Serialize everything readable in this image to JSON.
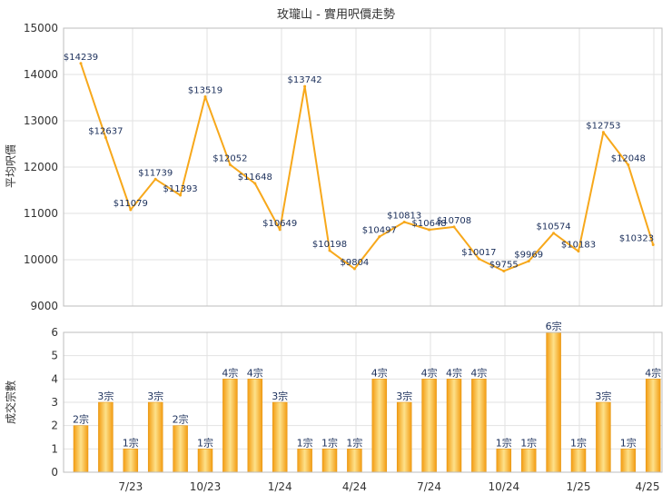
{
  "chart_data": [
    {
      "type": "line",
      "title": "玫瓏山 - 實用呎價走勢",
      "ylabel": "平均呎價",
      "ylim": [
        9000,
        15000
      ],
      "yticks": [
        9000,
        10000,
        11000,
        12000,
        13000,
        14000,
        15000
      ],
      "grid": true,
      "series": [
        {
          "color": "#f7a81b",
          "values": [
            14239,
            12637,
            11079,
            11739,
            11393,
            13519,
            12052,
            11648,
            10649,
            13742,
            10198,
            9804,
            10497,
            10813,
            10648,
            10708,
            10017,
            9755,
            9969,
            10574,
            10183,
            12753,
            12048,
            10323
          ],
          "labels": [
            "$14239",
            "$12637",
            "$11079",
            "$11739",
            "$11393",
            "$13519",
            "$12052",
            "$11648",
            "$10649",
            "$13742",
            "$10198",
            "$9804",
            "$10497",
            "$10813",
            "$10648",
            "$10708",
            "$10017",
            "$9755",
            "$9969",
            "$10574",
            "$10183",
            "$12753",
            "$12048",
            "$10323"
          ]
        }
      ]
    },
    {
      "type": "bar",
      "ylabel": "成交宗數",
      "ylim": [
        0,
        6
      ],
      "yticks": [
        0,
        1,
        2,
        3,
        4,
        5,
        6
      ],
      "grid": true,
      "x_tick_labels": [
        "7/23",
        "10/23",
        "1/24",
        "4/24",
        "7/24",
        "10/24",
        "1/25",
        "4/25"
      ],
      "series": [
        {
          "color": "#f7a81b",
          "values": [
            2,
            3,
            1,
            3,
            2,
            1,
            4,
            4,
            3,
            1,
            1,
            1,
            4,
            3,
            4,
            4,
            4,
            1,
            1,
            6,
            1,
            3,
            1,
            4
          ],
          "labels": [
            "2宗",
            "3宗",
            "1宗",
            "3宗",
            "2宗",
            "1宗",
            "4宗",
            "4宗",
            "3宗",
            "1宗",
            "1宗",
            "1宗",
            "4宗",
            "3宗",
            "4宗",
            "4宗",
            "4宗",
            "1宗",
            "1宗",
            "6宗",
            "1宗",
            "3宗",
            "1宗",
            "4宗"
          ]
        }
      ]
    }
  ]
}
